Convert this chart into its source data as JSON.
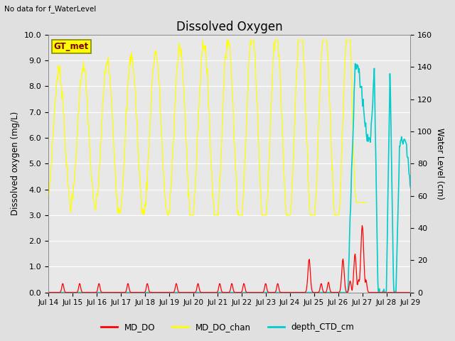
{
  "title": "Dissolved Oxygen",
  "note": "No data for f_WaterLevel",
  "ylabel_left": "Dissolved oxygen (mg/L)",
  "ylabel_right": "Water Level (cm)",
  "ylim_left": [
    0.0,
    10.0
  ],
  "ylim_right": [
    0,
    160
  ],
  "yticks_left": [
    0.0,
    1.0,
    2.0,
    3.0,
    4.0,
    5.0,
    6.0,
    7.0,
    8.0,
    9.0,
    10.0
  ],
  "yticks_right": [
    0,
    20,
    40,
    60,
    80,
    100,
    120,
    140,
    160
  ],
  "xtick_labels": [
    "Jul 14",
    "Jul 15",
    "Jul 16",
    "Jul 17",
    "Jul 18",
    "Jul 19",
    "Jul 20",
    "Jul 21",
    "Jul 22",
    "Jul 23",
    "Jul 24",
    "Jul 25",
    "Jul 26",
    "Jul 27",
    "Jul 28",
    "Jul 29"
  ],
  "background_color": "#e0e0e0",
  "plot_bg_color": "#e8e8e8",
  "plot_bg_color2": "#f5f5f5",
  "grid_color": "#ffffff",
  "legend_label_box": "GT_met",
  "legend_box_facecolor": "#ffff00",
  "legend_box_edgecolor": "#888800",
  "legend_box_text_color": "#800000",
  "line_colors": {
    "MD_DO": "#ff0000",
    "MD_DO_chan": "#ffff00",
    "depth_CTD_cm": "#00cccc"
  },
  "n_days": 15
}
